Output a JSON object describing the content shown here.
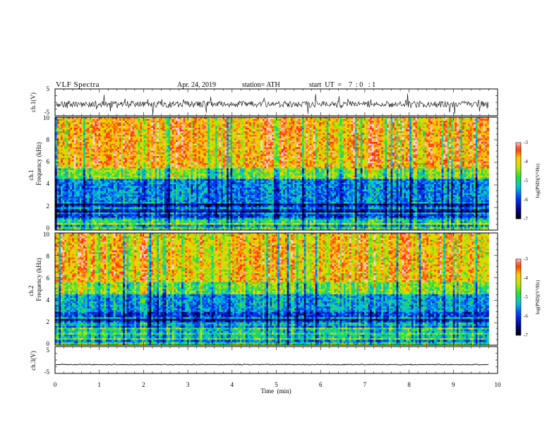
{
  "header": {
    "title": "VLF  Spectra",
    "date": "Apr. 24, 2019",
    "station": "station= ATH",
    "start": "start  UT  =    7  : 0   : 1"
  },
  "chart_data": [
    {
      "type": "line",
      "id": "ch1-waveform",
      "ylabel": "ch.1(V)",
      "ylim": [
        -5,
        5
      ],
      "yticks": [
        "5",
        "-5"
      ],
      "xlim": [
        0,
        10
      ],
      "description_mean_level": -0.7,
      "noise_amplitude_approx": 1.2
    },
    {
      "type": "heatmap",
      "id": "ch1-spectrogram",
      "ylabel": "ch.1",
      "ylabel2": "Frequency  (kHz)",
      "ylim": [
        0,
        10
      ],
      "yticks": [
        "0",
        "2",
        "4",
        "6",
        "8",
        "10"
      ],
      "xlim": [
        0,
        9.8
      ],
      "bands": [
        {
          "from": 0,
          "to": 1.0,
          "level": -5.0
        },
        {
          "from": 1.0,
          "to": 2.5,
          "level": -6.0
        },
        {
          "from": 2.5,
          "to": 4.5,
          "level": -5.6
        },
        {
          "from": 4.5,
          "to": 5.5,
          "level": -4.6
        },
        {
          "from": 5.5,
          "to": 10,
          "level": -3.7
        }
      ],
      "colorbar": {
        "label": "log(PSD)(V²/Hz)",
        "range": [
          -7,
          -3
        ],
        "ticks": [
          "-3",
          "-4",
          "-5",
          "-6",
          "-7"
        ]
      }
    },
    {
      "type": "heatmap",
      "id": "ch2-spectrogram",
      "ylabel": "ch.2",
      "ylabel2": "Frequency  (kHz)",
      "ylim": [
        0,
        10
      ],
      "yticks": [
        "0",
        "2",
        "4",
        "6",
        "8",
        "10"
      ],
      "xlim": [
        0,
        9.8
      ],
      "bands": [
        {
          "from": 0,
          "to": 1.8,
          "level": -5.2
        },
        {
          "from": 1.8,
          "to": 3.0,
          "level": -5.9
        },
        {
          "from": 3.0,
          "to": 4.6,
          "level": -5.4
        },
        {
          "from": 4.6,
          "to": 5.6,
          "level": -4.5
        },
        {
          "from": 5.6,
          "to": 10,
          "level": -3.8
        }
      ],
      "colorbar": {
        "label": "log(PSD)(V²/Hz)",
        "range": [
          -7,
          -3
        ],
        "ticks": [
          "-3",
          "-4",
          "-5",
          "-6",
          "-7"
        ]
      }
    },
    {
      "type": "line",
      "id": "ch3-waveform",
      "ylabel": "ch.3(V)",
      "ylim": [
        -5,
        5
      ],
      "yticks": [
        "5",
        "-5"
      ],
      "xlim": [
        0,
        10
      ],
      "description_mean_level": -1.7,
      "noise_amplitude_approx": 0.15
    }
  ],
  "xaxis": {
    "label": "Time  (min)",
    "ticks": [
      "0",
      "1",
      "2",
      "3",
      "4",
      "5",
      "6",
      "7",
      "8",
      "9",
      "10"
    ]
  }
}
